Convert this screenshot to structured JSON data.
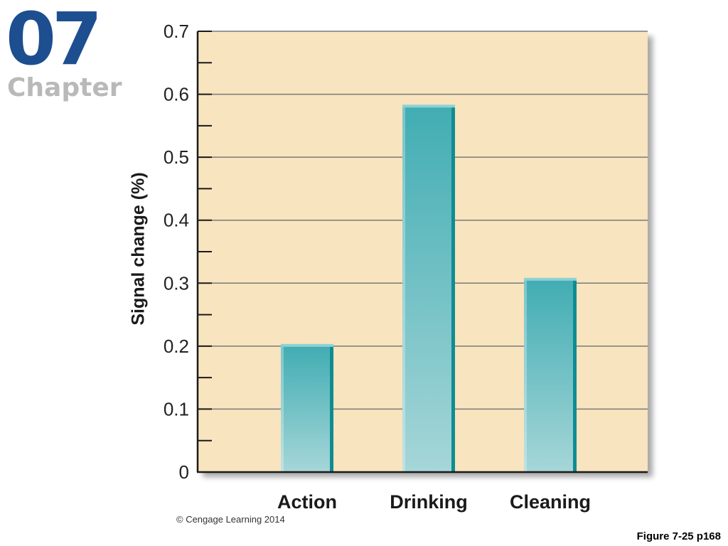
{
  "brand": {
    "number": "07",
    "word": "Chapter"
  },
  "footer": {
    "copyright": "© Cengage Learning 2014",
    "figure_ref": "Figure 7-25 p168"
  },
  "colors": {
    "plot_background": "#f8e4be",
    "bar_top": "#41adb3",
    "bar_bottom": "#a6d6d8",
    "bar_edge": "#0f8c93",
    "gridline": "#7a7a7a",
    "axis": "#1a1a1a",
    "brand_number": "#1d4e8f",
    "brand_word": "#b9b9b9"
  },
  "chart_data": {
    "type": "bar",
    "title": "",
    "xlabel": "",
    "ylabel": "Signal change (%)",
    "categories": [
      "Action",
      "Drinking",
      "Cleaning"
    ],
    "values": [
      0.2,
      0.58,
      0.305
    ],
    "ylim": [
      0,
      0.7
    ],
    "yticks": [
      "0",
      "0.1",
      "0.2",
      "0.3",
      "0.4",
      "0.5",
      "0.6",
      "0.7"
    ],
    "grid": true,
    "legend": "none"
  }
}
